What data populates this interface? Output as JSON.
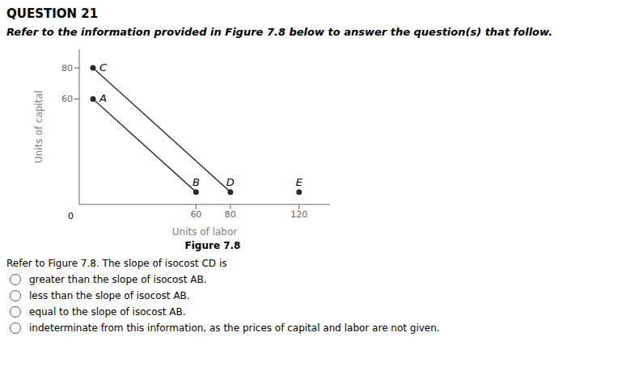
{
  "chart_data": {
    "type": "line",
    "title": "QUESTION 21",
    "subtitle": "Refer to the information provided in Figure 7.8 below to answer the question(s) that follow.",
    "xlabel": "Units of labor",
    "ylabel": "Units of capital",
    "xlim": [
      -8,
      138
    ],
    "ylim": [
      -8,
      92
    ],
    "xticks": [
      60,
      80,
      120
    ],
    "yticks": [
      60,
      80
    ],
    "series": [
      {
        "x": [
          0,
          60
        ],
        "values": [
          60,
          0
        ],
        "color": "#333333"
      },
      {
        "x": [
          0,
          80
        ],
        "values": [
          80,
          0
        ],
        "color": "#333333"
      }
    ],
    "points": {
      "type": "scatter",
      "x": [
        0,
        0,
        60,
        80,
        120
      ],
      "values": [
        80,
        60,
        0,
        0,
        0
      ],
      "labels": [
        "C",
        "A",
        "B",
        "D",
        "E"
      ],
      "color": "#2a2a2a"
    },
    "annotations": [
      "0",
      "Figure 7.8",
      "Refer to Figure 7.8. The slope of isocost CD is"
    ],
    "options": [
      "greater than the slope of isocost AB.",
      "less than the slope of isocost AB.",
      "equal to the slope of isocost AB.",
      "indeterminate from this information, as the prices of capital and labor are not given."
    ]
  }
}
